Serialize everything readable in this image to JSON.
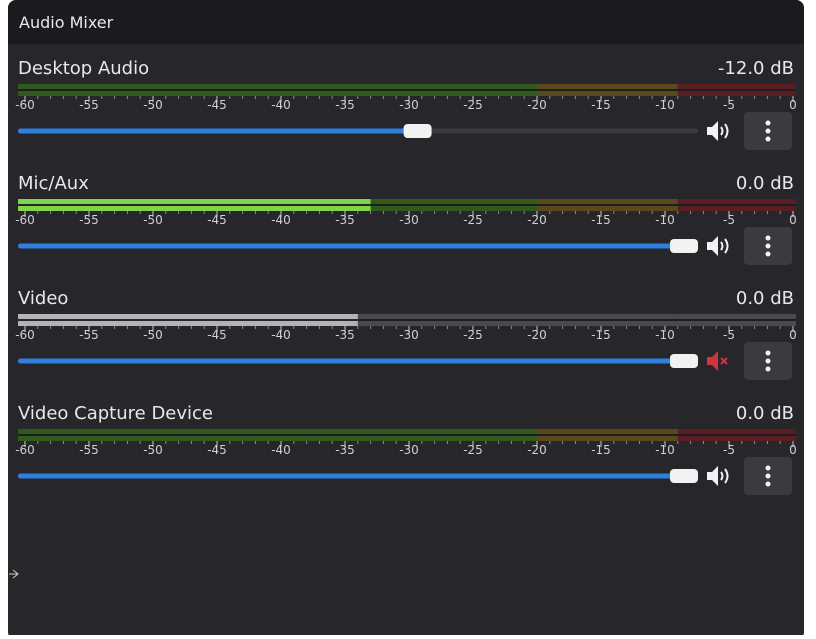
{
  "header": {
    "title": "Audio Mixer"
  },
  "scale": [
    -60,
    -55,
    -50,
    -45,
    -40,
    -35,
    -30,
    -25,
    -20,
    -15,
    -10,
    -5,
    0
  ],
  "channels": [
    {
      "name": "Desktop Audio",
      "volume": "-12.0 dB",
      "fader": 0.6,
      "level": null,
      "muted": false
    },
    {
      "name": "Mic/Aux",
      "volume": "0.0 dB",
      "fader": 1,
      "level": -33,
      "muted": false
    },
    {
      "name": "Video",
      "volume": "0.0 dB",
      "fader": 1,
      "level": -34,
      "muted": true
    },
    {
      "name": "Video Capture Device",
      "volume": "0.0 dB",
      "fader": 1,
      "level": null,
      "muted": false
    }
  ]
}
